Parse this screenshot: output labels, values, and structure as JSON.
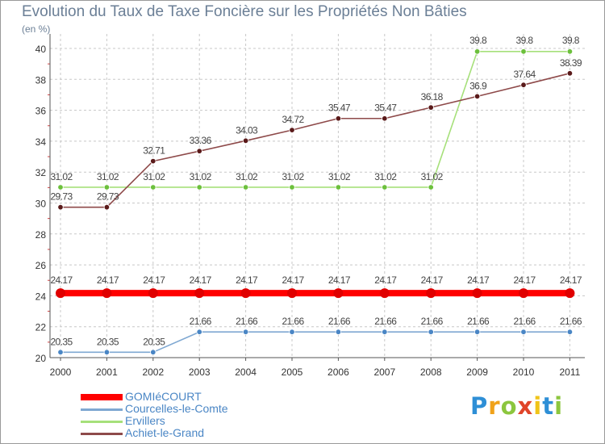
{
  "chart_data": {
    "type": "line",
    "title": "Evolution du Taux de Taxe Foncière sur les Propriétés Non Bâties",
    "ylabel": "(en %)",
    "xlabel": "",
    "ylim": [
      20,
      40
    ],
    "yticks": [
      "20",
      "22",
      "24",
      "26",
      "28",
      "30",
      "32",
      "34",
      "36",
      "38",
      "40"
    ],
    "categories": [
      "2000",
      "2001",
      "2002",
      "2003",
      "2004",
      "2005",
      "2006",
      "2007",
      "2008",
      "2009",
      "2010",
      "2011"
    ],
    "grid": "horizontal dashed",
    "legend_position": "bottom-left",
    "series": [
      {
        "name": "GOMIéCOURT",
        "color": "#ff0000",
        "point_color": "#e00000",
        "values": [
          24.17,
          24.17,
          24.17,
          24.17,
          24.17,
          24.17,
          24.17,
          24.17,
          24.17,
          24.17,
          24.17,
          24.17
        ],
        "labels": [
          "24.17",
          "24.17",
          "24.17",
          "24.17",
          "24.17",
          "24.17",
          "24.17",
          "24.17",
          "24.17",
          "24.17",
          "24.17",
          "24.17"
        ]
      },
      {
        "name": "Courcelles-le-Comte",
        "color": "#7fa8d2",
        "point_color": "#4a86c5",
        "values": [
          20.35,
          20.35,
          20.35,
          21.66,
          21.66,
          21.66,
          21.66,
          21.66,
          21.66,
          21.66,
          21.66,
          21.66
        ],
        "labels": [
          "20.35",
          "20.35",
          "20.35",
          "21.66",
          "21.66",
          "21.66",
          "21.66",
          "21.66",
          "21.66",
          "21.66",
          "21.66",
          "21.66"
        ]
      },
      {
        "name": "Ervillers",
        "color": "#a6e07a",
        "point_color": "#6cc03c",
        "values": [
          31.02,
          31.02,
          31.02,
          31.02,
          31.02,
          31.02,
          31.02,
          31.02,
          31.02,
          39.8,
          39.8,
          39.8
        ],
        "labels": [
          "31.02",
          "31.02",
          "31.02",
          "31.02",
          "31.02",
          "31.02",
          "31.02",
          "31.02",
          "31.02",
          "39.8",
          "39.8",
          "39.8"
        ]
      },
      {
        "name": "Achiet-le-Grand",
        "color": "#8e4a4a",
        "point_color": "#5a1a1a",
        "values": [
          29.73,
          29.73,
          32.71,
          33.36,
          34.03,
          34.72,
          35.47,
          35.47,
          36.18,
          36.9,
          37.64,
          38.39
        ],
        "labels": [
          "29.73",
          "29.73",
          "32.71",
          "33.36",
          "34.03",
          "34.72",
          "35.47",
          "35.47",
          "36.18",
          "36.9",
          "37.64",
          "38.39"
        ]
      }
    ]
  },
  "legend": {
    "items": [
      {
        "label": "GOMIéCOURT",
        "color": "#ff0000"
      },
      {
        "label": "Courcelles-le-Comte",
        "color": "#7fa8d2"
      },
      {
        "label": "Ervillers",
        "color": "#a6e07a"
      },
      {
        "label": "Achiet-le-Grand",
        "color": "#8e4a4a"
      }
    ]
  },
  "logo": {
    "text": "Proxiti",
    "letters": [
      "P",
      "r",
      "o",
      "x",
      "i",
      "t",
      "i"
    ]
  }
}
